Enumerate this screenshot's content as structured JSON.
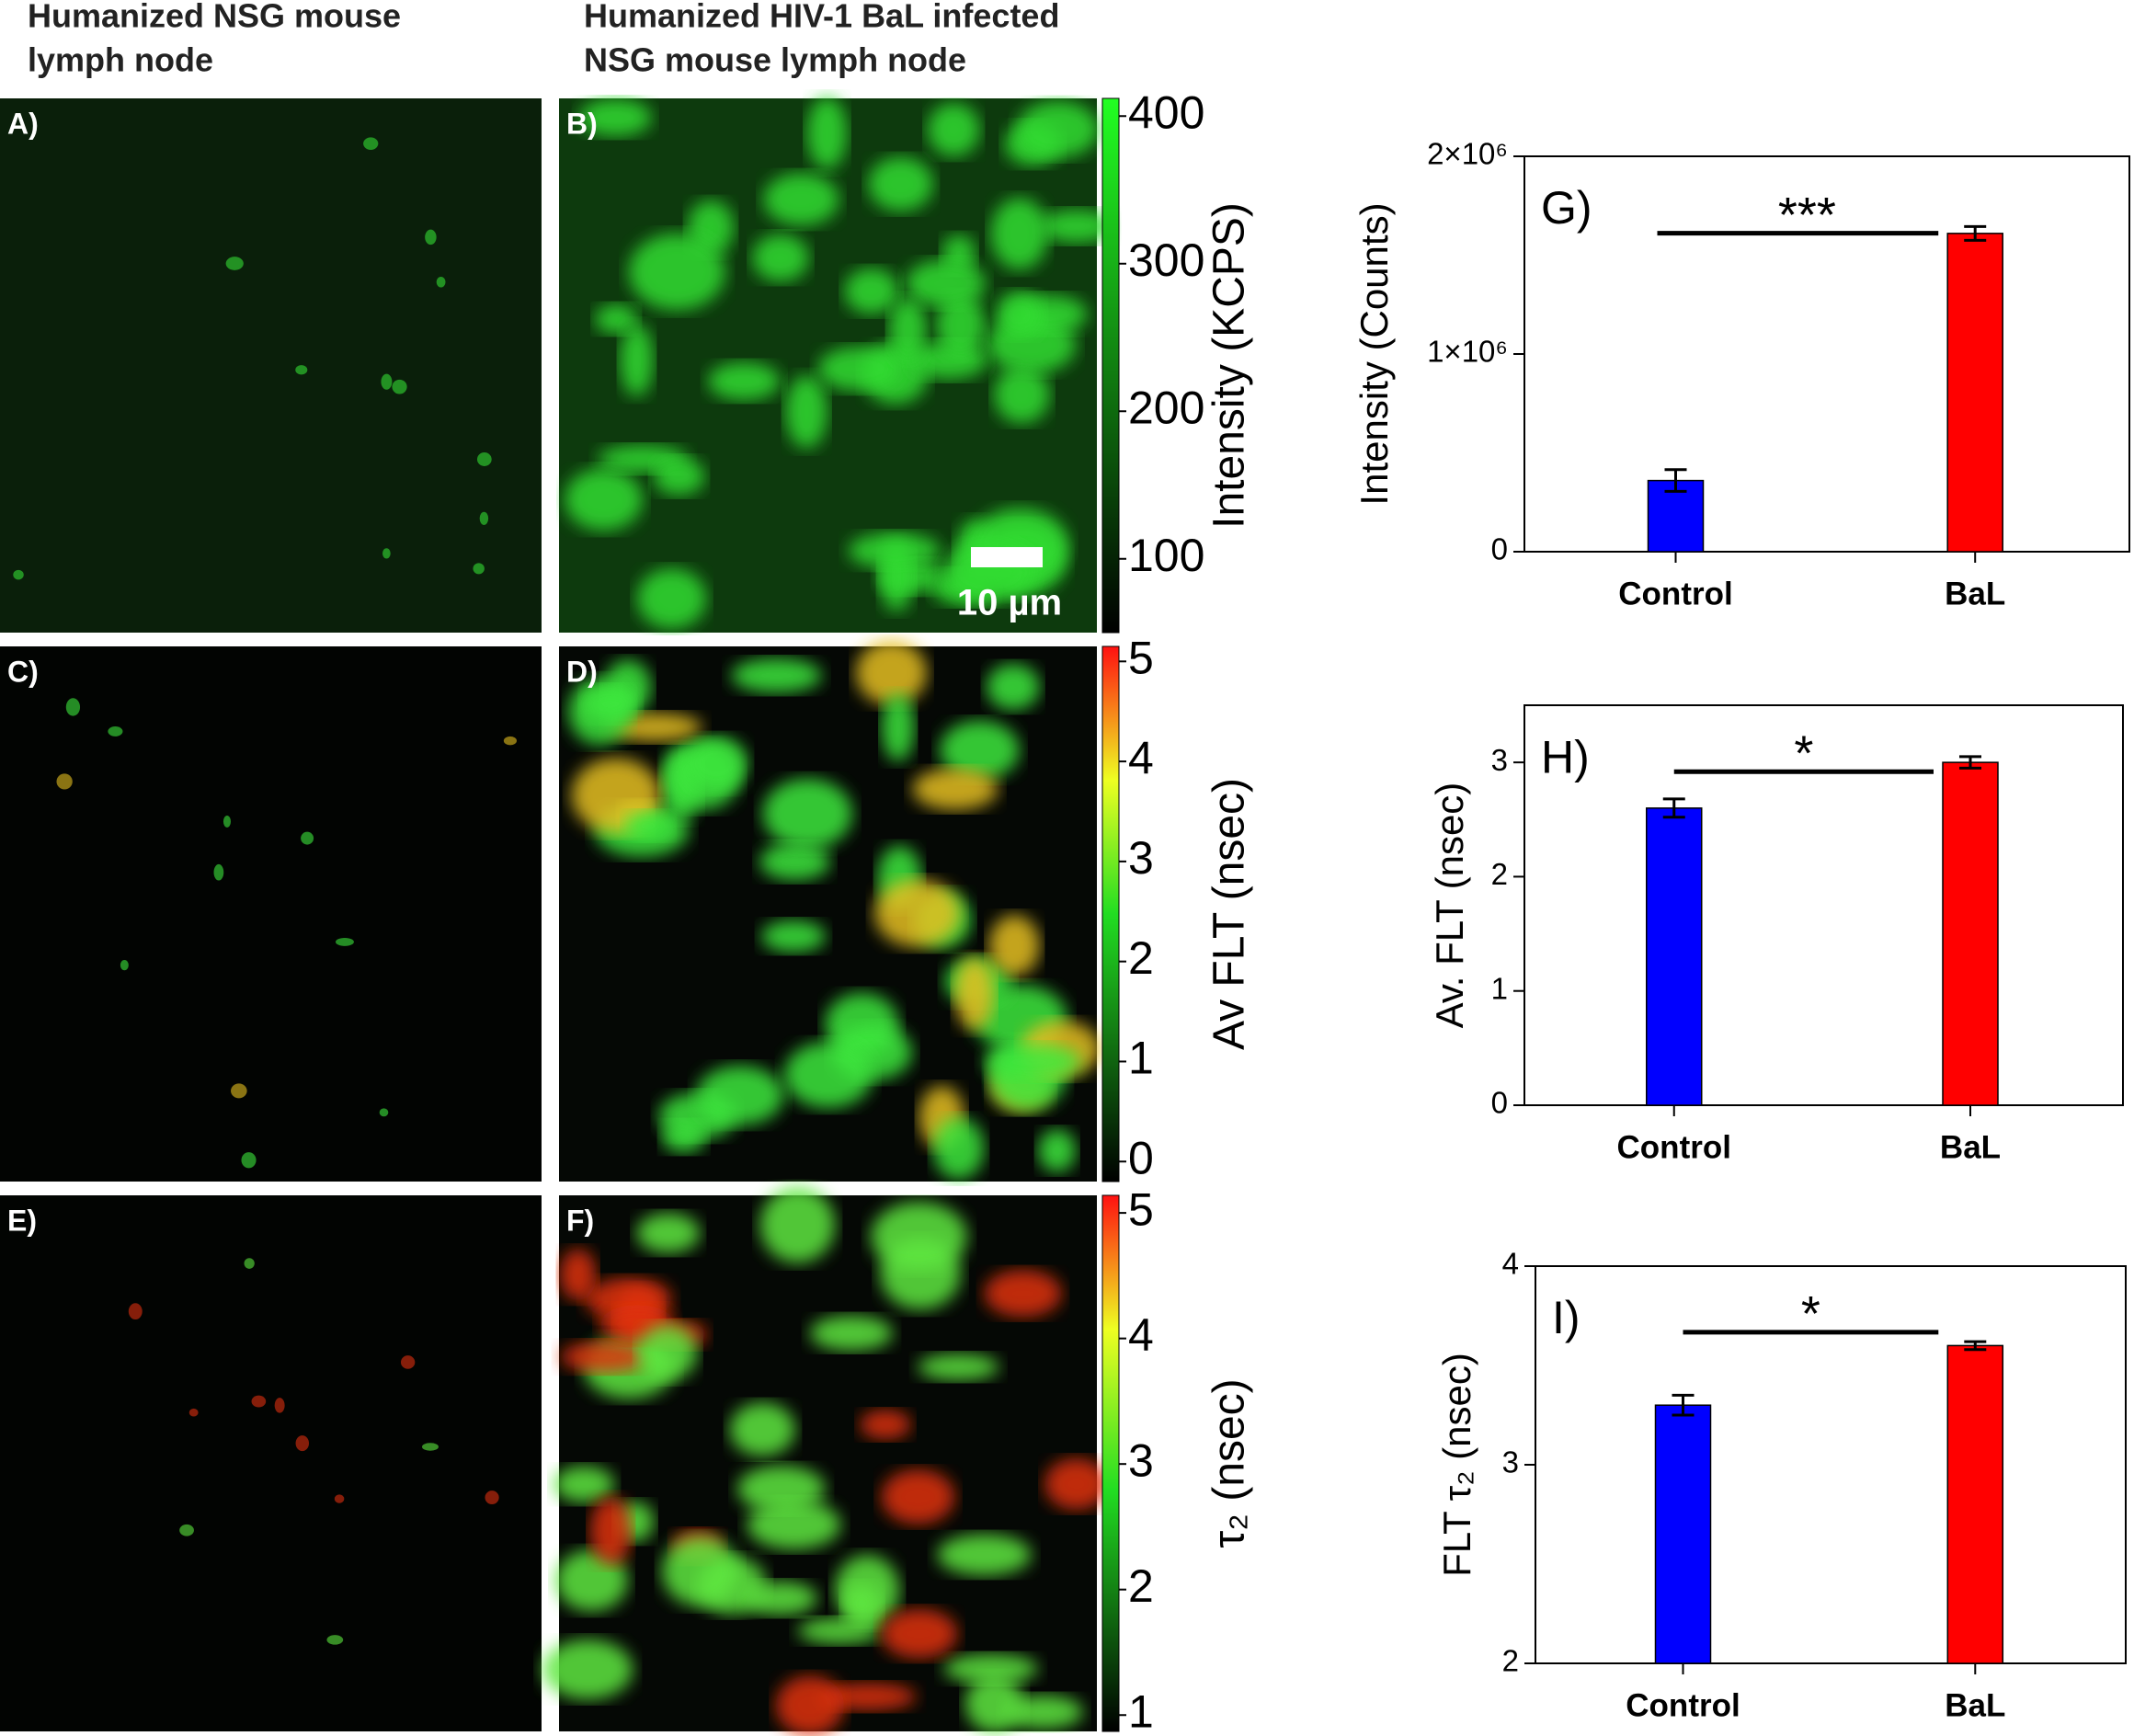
{
  "figure": {
    "column_titles": [
      [
        "Humanized NSG mouse",
        "lymph node"
      ],
      [
        "Humanized HIV-1 BaL infected",
        "NSG mouse lymph node"
      ]
    ],
    "image_panels": [
      "A)",
      "B)",
      "C)",
      "D)",
      "E)",
      "F)"
    ],
    "scale_bar": "10 µm",
    "colorbars": [
      {
        "label": "Intensity (KCPS)",
        "lim": [
          50,
          412
        ],
        "ticks": [
          100,
          200,
          300,
          400
        ]
      },
      {
        "label": "Av FLT (nsec)",
        "lim": [
          -0.2,
          5.15
        ],
        "ticks": [
          0,
          1,
          2,
          3,
          4,
          5
        ]
      },
      {
        "label": "τ₂ (nsec)",
        "lim": [
          0.87,
          5.14
        ],
        "ticks": [
          1,
          2,
          3,
          4,
          5
        ]
      }
    ]
  },
  "chart_data": [
    {
      "type": "bar",
      "panel_label": "G)",
      "annotation": "***",
      "ylabel": "Intensity (Counts)",
      "categories": [
        "Control",
        "BaL"
      ],
      "values": [
        360000,
        1610000
      ],
      "errors": [
        55000,
        35000
      ],
      "colors": [
        "#0000ff",
        "#ff0000"
      ],
      "ylim": [
        0,
        2000000
      ],
      "yticks": [
        0,
        {
          "value": 1000000,
          "label": "1×10⁶"
        },
        {
          "value": 2000000,
          "label": "2×10⁶"
        }
      ]
    },
    {
      "type": "bar",
      "panel_label": "H)",
      "annotation": "*",
      "ylabel": "Av. FLT (nsec)",
      "categories": [
        "Control",
        "BaL"
      ],
      "values": [
        2.6,
        3.0
      ],
      "errors": [
        0.08,
        0.05
      ],
      "colors": [
        "#0000ff",
        "#ff0000"
      ],
      "ylim": [
        0,
        3.5
      ],
      "yticks": [
        0,
        1,
        2,
        3
      ]
    },
    {
      "type": "bar",
      "panel_label": "I)",
      "annotation": "*",
      "ylabel": "FLT τ₂ (nsec)",
      "categories": [
        "Control",
        "BaL"
      ],
      "values": [
        3.3,
        3.6
      ],
      "errors": [
        0.05,
        0.02
      ],
      "colors": [
        "#0000ff",
        "#ff0000"
      ],
      "ylim": [
        2,
        4
      ],
      "yticks": [
        2,
        3,
        4
      ]
    }
  ]
}
